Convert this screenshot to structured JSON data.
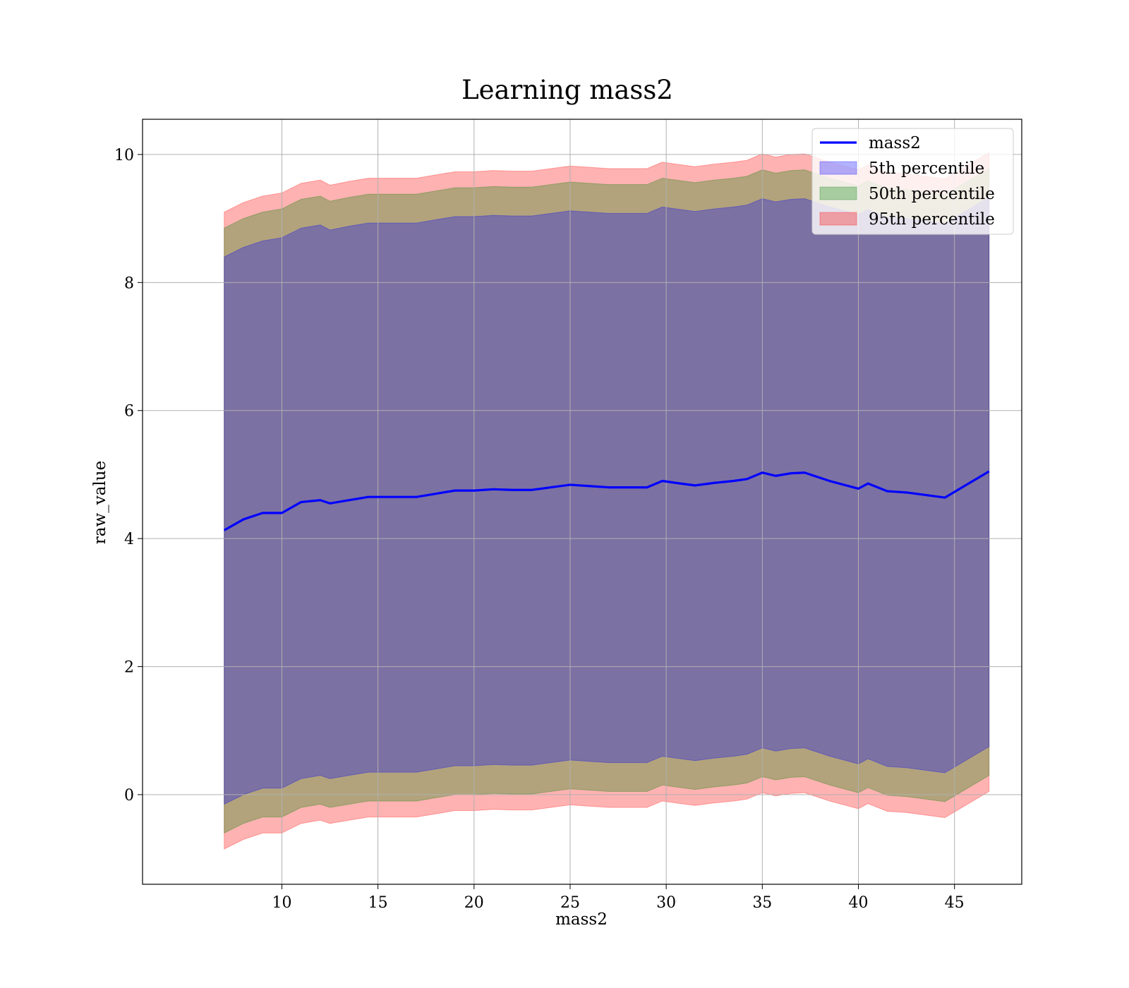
{
  "chart_data": {
    "type": "area",
    "title": "Learning mass2",
    "xlabel": "mass2",
    "ylabel": "raw_value",
    "xlim": [
      2.75,
      48.5
    ],
    "ylim": [
      -1.4,
      10.55
    ],
    "xticks": [
      10,
      15,
      20,
      25,
      30,
      35,
      40,
      45
    ],
    "yticks": [
      0,
      2,
      4,
      6,
      8,
      10
    ],
    "xtick_labels": [
      "10",
      "15",
      "20",
      "25",
      "30",
      "35",
      "40",
      "45"
    ],
    "ytick_labels": [
      "0",
      "2",
      "4",
      "6",
      "8",
      "10"
    ],
    "grid": true,
    "legend_position": "top-right",
    "x": [
      7.0,
      8.0,
      9.0,
      10.0,
      11.0,
      12.0,
      12.5,
      13.5,
      14.5,
      16.0,
      17.0,
      18.0,
      19.0,
      20.0,
      21.0,
      22.0,
      23.0,
      24.0,
      25.0,
      26.0,
      27.0,
      28.0,
      29.0,
      29.8,
      30.5,
      31.5,
      32.5,
      33.5,
      34.2,
      35.0,
      35.7,
      36.5,
      37.2,
      38.5,
      40.0,
      40.5,
      41.5,
      42.5,
      44.5,
      46.8
    ],
    "series": [
      {
        "name": "mass2",
        "kind": "line",
        "color": "#0000ff",
        "values": [
          4.13,
          4.3,
          4.4,
          4.4,
          4.57,
          4.6,
          4.55,
          4.6,
          4.65,
          4.65,
          4.65,
          4.7,
          4.75,
          4.75,
          4.77,
          4.76,
          4.76,
          4.8,
          4.84,
          4.82,
          4.8,
          4.8,
          4.8,
          4.9,
          4.87,
          4.83,
          4.87,
          4.9,
          4.93,
          5.03,
          4.98,
          5.02,
          5.03,
          4.9,
          4.78,
          4.86,
          4.74,
          4.72,
          4.64,
          5.05
        ]
      },
      {
        "name": "5th percentile",
        "kind": "band",
        "color": "#0000ff",
        "lower": [
          -0.15,
          0.0,
          0.1,
          0.1,
          0.25,
          0.3,
          0.25,
          0.3,
          0.35,
          0.35,
          0.35,
          0.4,
          0.45,
          0.45,
          0.47,
          0.46,
          0.46,
          0.5,
          0.54,
          0.52,
          0.5,
          0.5,
          0.5,
          0.6,
          0.57,
          0.53,
          0.57,
          0.6,
          0.63,
          0.73,
          0.68,
          0.72,
          0.73,
          0.6,
          0.48,
          0.56,
          0.44,
          0.42,
          0.34,
          0.75
        ],
        "upper": [
          8.4,
          8.55,
          8.65,
          8.7,
          8.85,
          8.9,
          8.82,
          8.88,
          8.93,
          8.93,
          8.93,
          8.98,
          9.03,
          9.03,
          9.05,
          9.04,
          9.04,
          9.08,
          9.12,
          9.1,
          9.08,
          9.08,
          9.08,
          9.18,
          9.15,
          9.11,
          9.15,
          9.18,
          9.21,
          9.31,
          9.26,
          9.3,
          9.31,
          9.18,
          9.06,
          9.14,
          9.02,
          9.0,
          8.92,
          9.33
        ]
      },
      {
        "name": "50th percentile",
        "kind": "band",
        "color": "#008000",
        "lower": [
          -0.6,
          -0.45,
          -0.35,
          -0.35,
          -0.2,
          -0.15,
          -0.2,
          -0.15,
          -0.1,
          -0.1,
          -0.1,
          -0.05,
          0.0,
          0.0,
          0.02,
          0.01,
          0.01,
          0.05,
          0.09,
          0.07,
          0.05,
          0.05,
          0.05,
          0.15,
          0.12,
          0.08,
          0.12,
          0.15,
          0.18,
          0.28,
          0.23,
          0.27,
          0.28,
          0.15,
          0.03,
          0.11,
          -0.01,
          -0.03,
          -0.11,
          0.3
        ],
        "upper": [
          8.85,
          9.0,
          9.1,
          9.15,
          9.3,
          9.35,
          9.27,
          9.33,
          9.38,
          9.38,
          9.38,
          9.43,
          9.48,
          9.48,
          9.5,
          9.49,
          9.49,
          9.53,
          9.57,
          9.55,
          9.53,
          9.53,
          9.53,
          9.63,
          9.6,
          9.56,
          9.6,
          9.63,
          9.66,
          9.76,
          9.71,
          9.75,
          9.76,
          9.63,
          9.51,
          9.59,
          9.47,
          9.45,
          9.37,
          9.78
        ]
      },
      {
        "name": "95th percentile",
        "kind": "band",
        "color": "#ff0000",
        "lower": [
          -0.85,
          -0.7,
          -0.6,
          -0.6,
          -0.45,
          -0.4,
          -0.45,
          -0.4,
          -0.35,
          -0.35,
          -0.35,
          -0.3,
          -0.25,
          -0.25,
          -0.23,
          -0.24,
          -0.24,
          -0.2,
          -0.16,
          -0.18,
          -0.2,
          -0.2,
          -0.2,
          -0.1,
          -0.13,
          -0.17,
          -0.13,
          -0.1,
          -0.07,
          0.03,
          -0.02,
          0.02,
          0.03,
          -0.1,
          -0.22,
          -0.14,
          -0.26,
          -0.28,
          -0.36,
          0.05
        ],
        "upper": [
          9.1,
          9.25,
          9.35,
          9.4,
          9.55,
          9.6,
          9.52,
          9.58,
          9.63,
          9.63,
          9.63,
          9.68,
          9.73,
          9.73,
          9.75,
          9.74,
          9.74,
          9.78,
          9.82,
          9.8,
          9.78,
          9.78,
          9.78,
          9.88,
          9.85,
          9.81,
          9.85,
          9.88,
          9.91,
          10.01,
          9.96,
          10.0,
          10.01,
          9.88,
          9.76,
          9.84,
          9.72,
          9.7,
          9.62,
          10.03
        ]
      }
    ],
    "legend": [
      "mass2",
      "5th percentile",
      "50th percentile",
      "95th percentile"
    ]
  }
}
